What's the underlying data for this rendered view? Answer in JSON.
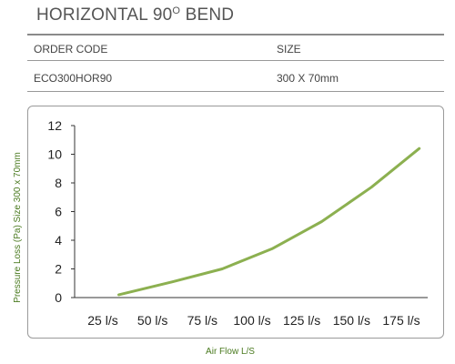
{
  "header": {
    "title": "HORIZONTAL 90",
    "title_sup": "O",
    "title_suffix": " BEND"
  },
  "table": {
    "col1_header": "ORDER CODE",
    "col2_header": "SIZE",
    "col1_value": "ECO300HOR90",
    "col2_value": "300 X 70mm"
  },
  "colors": {
    "line": "#8cb050",
    "axis": "#333333",
    "label": "#4a7a1f"
  },
  "chart_data": {
    "type": "line",
    "title": "",
    "xlabel": "Air Flow L/S",
    "ylabel": "Pressure Loss (Pa) Size 300 x 70mm",
    "categories": [
      "25 l/s",
      "50 l/s",
      "75 l/s",
      "100 l/s",
      "125 l/s",
      "150 l/s",
      "175 l/s"
    ],
    "x_domain": [
      25,
      175
    ],
    "x": [
      33,
      60,
      85,
      110,
      135,
      160,
      184
    ],
    "y": [
      0.2,
      1.1,
      2.0,
      3.4,
      5.3,
      7.7,
      10.4
    ],
    "ylim": [
      0,
      12
    ],
    "yticks": [
      0,
      2,
      4,
      6,
      8,
      10,
      12
    ],
    "grid": false,
    "legend": "none"
  }
}
